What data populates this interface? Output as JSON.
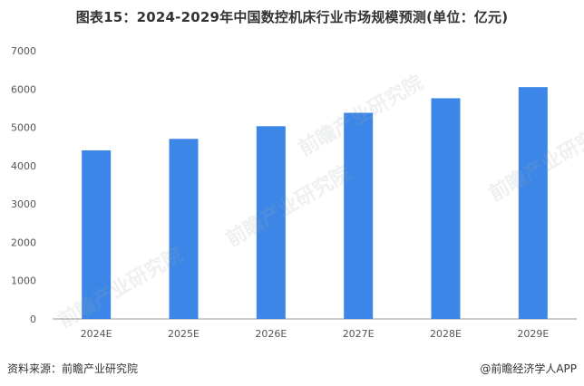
{
  "title": "图表15：2024-2029年中国数控机床行业市场规模预测(单位：亿元)",
  "source": "资料来源：前瞻产业研究院",
  "brand": "@前瞻经济学人APP",
  "watermark": "前瞻产业研究院",
  "colors": {
    "bar": "#3B86E6",
    "axis": "#999999"
  },
  "chart_data": {
    "type": "bar",
    "title": "图表15：2024-2029年中国数控机床行业市场规模预测(单位：亿元)",
    "categories": [
      "2024E",
      "2025E",
      "2026E",
      "2027E",
      "2028E",
      "2029E"
    ],
    "values": [
      4400,
      4700,
      5030,
      5380,
      5760,
      6050
    ],
    "ylim": [
      0,
      7000
    ],
    "yticks": [
      0,
      1000,
      2000,
      3000,
      4000,
      5000,
      6000,
      7000
    ],
    "xlabel": "",
    "ylabel": "",
    "grid": false,
    "legend": "none"
  }
}
